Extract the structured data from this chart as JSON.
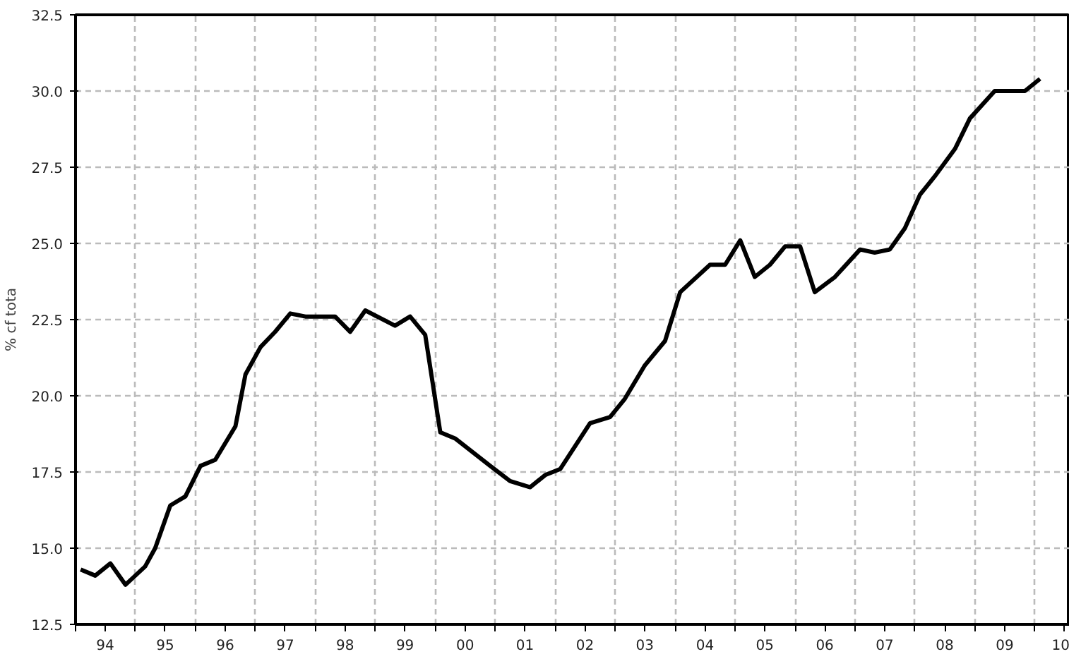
{
  "chart_data": {
    "type": "line",
    "ylabel": "% cf tota",
    "x": [
      "1994-02",
      "1994-05",
      "1994-08",
      "1994-11",
      "1995-03",
      "1995-05",
      "1995-08",
      "1995-11",
      "1996-02",
      "1996-05",
      "1996-09",
      "1996-11",
      "1997-02",
      "1997-05",
      "1997-08",
      "1997-11",
      "1998-05",
      "1998-08",
      "1998-11",
      "1999-05",
      "1999-08",
      "1999-11",
      "2000-02",
      "2000-05",
      "2000-12",
      "2001-04",
      "2001-08",
      "2001-11",
      "2002-02",
      "2002-08",
      "2002-12",
      "2003-03",
      "2003-07",
      "2003-11",
      "2004-02",
      "2004-08",
      "2004-11",
      "2005-02",
      "2005-05",
      "2005-08",
      "2005-11",
      "2006-02",
      "2006-05",
      "2006-09",
      "2007-02",
      "2007-05",
      "2007-08",
      "2007-11",
      "2008-02",
      "2008-05",
      "2008-09",
      "2008-12",
      "2009-05",
      "2009-11",
      "2010-02"
    ],
    "series": [
      {
        "color": "#000000",
        "values": [
          14.3,
          14.1,
          14.5,
          13.8,
          14.4,
          15.0,
          16.4,
          16.7,
          17.7,
          17.9,
          19.0,
          20.7,
          21.6,
          22.1,
          22.7,
          22.6,
          22.6,
          22.1,
          22.8,
          22.3,
          22.6,
          22.0,
          18.8,
          18.6,
          17.7,
          17.2,
          17.0,
          17.4,
          17.6,
          19.1,
          19.3,
          19.9,
          21.0,
          21.8,
          23.4,
          24.3,
          24.3,
          25.1,
          23.9,
          24.3,
          24.9,
          24.9,
          23.4,
          23.9,
          24.8,
          24.7,
          24.8,
          25.5,
          26.6,
          27.2,
          28.1,
          29.1,
          30.0,
          30.0,
          30.4
        ]
      }
    ],
    "xlim": [
      "1994-01",
      "2010-08"
    ],
    "xticks": [
      {
        "value": "1994-01",
        "label": null
      },
      {
        "value": "1994-07",
        "label": "94"
      },
      {
        "value": "1995-01",
        "label": null
      },
      {
        "value": "1995-07",
        "label": "95"
      },
      {
        "value": "1996-01",
        "label": null
      },
      {
        "value": "1996-07",
        "label": "96"
      },
      {
        "value": "1997-01",
        "label": null
      },
      {
        "value": "1997-07",
        "label": "97"
      },
      {
        "value": "1998-01",
        "label": null
      },
      {
        "value": "1998-07",
        "label": "98"
      },
      {
        "value": "1999-01",
        "label": null
      },
      {
        "value": "1999-07",
        "label": "99"
      },
      {
        "value": "2000-01",
        "label": null
      },
      {
        "value": "2000-07",
        "label": "00"
      },
      {
        "value": "2001-01",
        "label": null
      },
      {
        "value": "2001-07",
        "label": "01"
      },
      {
        "value": "2002-01",
        "label": null
      },
      {
        "value": "2002-07",
        "label": "02"
      },
      {
        "value": "2003-01",
        "label": null
      },
      {
        "value": "2003-07",
        "label": "03"
      },
      {
        "value": "2004-01",
        "label": null
      },
      {
        "value": "2004-07",
        "label": "04"
      },
      {
        "value": "2005-01",
        "label": null
      },
      {
        "value": "2005-07",
        "label": "05"
      },
      {
        "value": "2006-01",
        "label": null
      },
      {
        "value": "2006-07",
        "label": "06"
      },
      {
        "value": "2007-01",
        "label": null
      },
      {
        "value": "2007-07",
        "label": "07"
      },
      {
        "value": "2008-01",
        "label": null
      },
      {
        "value": "2008-07",
        "label": "08"
      },
      {
        "value": "2009-01",
        "label": null
      },
      {
        "value": "2009-07",
        "label": "09"
      },
      {
        "value": "2010-01",
        "label": null
      },
      {
        "value": "2010-07",
        "label": "10"
      }
    ],
    "ylim": [
      12.5,
      32.5
    ],
    "yticks": [
      12.5,
      {
        "value": 15,
        "label": "15.0"
      },
      17.5,
      {
        "value": 20,
        "label": "20.0"
      },
      22.5,
      {
        "value": 25,
        "label": "25.0"
      },
      27.5,
      {
        "value": 30,
        "label": "30.0"
      },
      32.5
    ],
    "grid": true,
    "line_style": "solid",
    "marker": "none"
  }
}
